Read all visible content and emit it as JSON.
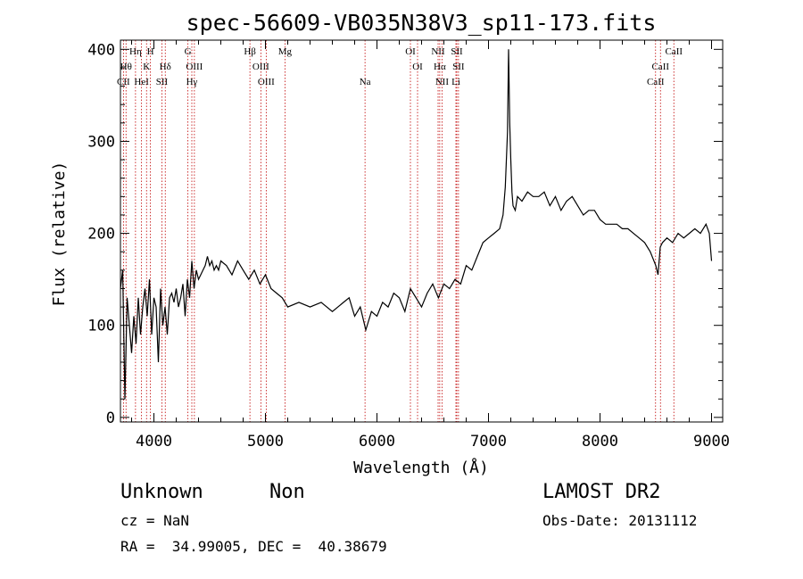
{
  "chart_data": {
    "type": "line",
    "title": "spec-56609-VB035N38V3_sp11-173.fits",
    "xlabel": "Wavelength (Å)",
    "ylabel": "Flux (relative)",
    "xlim": [
      3700,
      9100
    ],
    "ylim": [
      -5,
      410
    ],
    "xticks": [
      4000,
      5000,
      6000,
      7000,
      8000,
      9000
    ],
    "yticks": [
      0,
      100,
      200,
      300,
      400
    ],
    "grid": false,
    "line_color": "#000000",
    "marker_color": "#c00000",
    "series": [
      {
        "x": [
          3700,
          3720,
          3740,
          3760,
          3780,
          3800,
          3820,
          3840,
          3860,
          3880,
          3900,
          3920,
          3940,
          3960,
          3980,
          4000,
          4020,
          4040,
          4060,
          4080,
          4100,
          4120,
          4140,
          4160,
          4180,
          4200,
          4220,
          4240,
          4260,
          4280,
          4300,
          4320,
          4340,
          4360,
          4380,
          4400,
          4420,
          4440,
          4460,
          4480,
          4500,
          4520,
          4540,
          4560,
          4580,
          4600,
          4650,
          4700,
          4750,
          4800,
          4850,
          4900,
          4950,
          5000,
          5050,
          5100,
          5150,
          5200,
          5300,
          5400,
          5500,
          5600,
          5700,
          5750,
          5800,
          5850,
          5900,
          5950,
          6000,
          6050,
          6100,
          6150,
          6200,
          6250,
          6300,
          6350,
          6400,
          6450,
          6500,
          6550,
          6600,
          6650,
          6700,
          6750,
          6800,
          6850,
          6900,
          6950,
          7000,
          7050,
          7100,
          7130,
          7150,
          7170,
          7180,
          7190,
          7200,
          7210,
          7220,
          7240,
          7260,
          7300,
          7350,
          7400,
          7450,
          7500,
          7550,
          7600,
          7650,
          7700,
          7750,
          7800,
          7850,
          7900,
          7950,
          8000,
          8050,
          8100,
          8150,
          8200,
          8250,
          8300,
          8350,
          8400,
          8450,
          8500,
          8520,
          8540,
          8560,
          8600,
          8650,
          8700,
          8750,
          8800,
          8850,
          8900,
          8950,
          8980,
          9000
        ],
        "y": [
          140,
          160,
          20,
          130,
          100,
          70,
          110,
          80,
          130,
          90,
          120,
          140,
          110,
          150,
          90,
          130,
          120,
          60,
          140,
          100,
          120,
          90,
          130,
          135,
          125,
          140,
          120,
          130,
          145,
          110,
          150,
          130,
          170,
          140,
          160,
          150,
          155,
          160,
          165,
          175,
          165,
          170,
          160,
          165,
          160,
          170,
          165,
          155,
          170,
          160,
          150,
          160,
          145,
          155,
          140,
          135,
          130,
          120,
          125,
          120,
          125,
          115,
          125,
          130,
          110,
          120,
          95,
          115,
          110,
          125,
          120,
          135,
          130,
          115,
          140,
          130,
          120,
          135,
          145,
          130,
          145,
          140,
          150,
          145,
          165,
          160,
          175,
          190,
          195,
          200,
          205,
          220,
          250,
          310,
          400,
          320,
          280,
          245,
          230,
          225,
          240,
          235,
          245,
          240,
          240,
          245,
          230,
          240,
          225,
          235,
          240,
          230,
          220,
          225,
          225,
          215,
          210,
          210,
          210,
          205,
          205,
          200,
          195,
          190,
          180,
          165,
          155,
          185,
          190,
          195,
          190,
          200,
          195,
          200,
          205,
          200,
          210,
          200,
          170
        ]
      }
    ],
    "lines": [
      {
        "label": "CII",
        "x": 3727,
        "row": 2
      },
      {
        "label": "Hθ",
        "x": 3750,
        "row": 1
      },
      {
        "label": "Hη",
        "x": 3835,
        "row": 0
      },
      {
        "label": "HeI",
        "x": 3889,
        "row": 2
      },
      {
        "label": "K",
        "x": 3934,
        "row": 1
      },
      {
        "label": "H",
        "x": 3969,
        "row": 0
      },
      {
        "label": "SII",
        "x": 4072,
        "row": 2
      },
      {
        "label": "Hδ",
        "x": 4102,
        "row": 1
      },
      {
        "label": "G",
        "x": 4305,
        "row": 0
      },
      {
        "label": "OIII",
        "x": 4363,
        "row": 1
      },
      {
        "label": "Hγ",
        "x": 4340,
        "row": 2
      },
      {
        "label": "Hβ",
        "x": 4861,
        "row": 0
      },
      {
        "label": "OIII",
        "x": 4959,
        "row": 1
      },
      {
        "label": "OIII",
        "x": 5007,
        "row": 2
      },
      {
        "label": "Mg",
        "x": 5175,
        "row": 0
      },
      {
        "label": "Na",
        "x": 5893,
        "row": 2
      },
      {
        "label": "OI",
        "x": 6300,
        "row": 0
      },
      {
        "label": "OI",
        "x": 6364,
        "row": 1
      },
      {
        "label": "NII",
        "x": 6548,
        "row": 0
      },
      {
        "label": "Hα",
        "x": 6563,
        "row": 1
      },
      {
        "label": "NII",
        "x": 6583,
        "row": 2
      },
      {
        "label": "SII",
        "x": 6716,
        "row": 0
      },
      {
        "label": "SII",
        "x": 6731,
        "row": 1
      },
      {
        "label": "Li",
        "x": 6708,
        "row": 2
      },
      {
        "label": "CaII",
        "x": 8498,
        "row": 2
      },
      {
        "label": "CaII",
        "x": 8542,
        "row": 1
      },
      {
        "label": "CaII",
        "x": 8662,
        "row": 0
      }
    ]
  },
  "info": {
    "class_text": "Unknown",
    "subclass_text": "Non",
    "survey": "LAMOST DR2",
    "cz_text": "cz = NaN",
    "obs_date": "Obs-Date: 20131112",
    "coords": "RA =  34.99005, DEC =  40.38679"
  }
}
